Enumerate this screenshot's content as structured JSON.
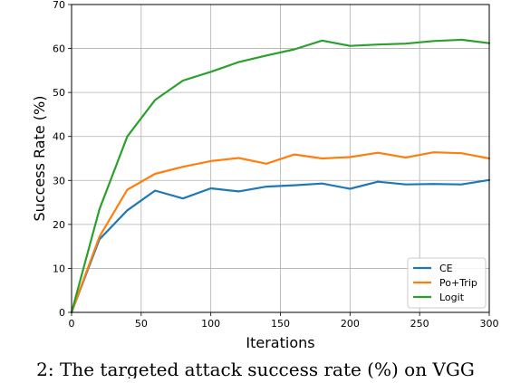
{
  "caption": "2: The targeted attack success rate (%) on VGG",
  "chart_data": {
    "type": "line",
    "title": "",
    "xlabel": "Iterations",
    "ylabel": "Success Rate (%)",
    "xlim": [
      0,
      300
    ],
    "ylim": [
      0,
      70
    ],
    "xticks": [
      "0",
      "50",
      "100",
      "150",
      "200",
      "250",
      "300"
    ],
    "yticks": [
      "0",
      "10",
      "20",
      "30",
      "40",
      "50",
      "60",
      "70"
    ],
    "grid": true,
    "legend_position": "lower-right",
    "x": [
      0,
      20,
      40,
      60,
      80,
      100,
      120,
      140,
      160,
      180,
      200,
      220,
      240,
      260,
      280,
      300
    ],
    "series": [
      {
        "name": "CE",
        "color": "#1f77b4",
        "values": [
          0,
          16.6,
          23.2,
          27.7,
          25.9,
          28.2,
          27.5,
          28.6,
          28.9,
          29.3,
          28.1,
          29.7,
          29.1,
          29.2,
          29.1,
          30.1
        ]
      },
      {
        "name": "Po+Trip",
        "color": "#ff7f0e",
        "values": [
          0,
          17.2,
          27.9,
          31.5,
          33.1,
          34.4,
          35.1,
          33.8,
          35.9,
          35.0,
          35.3,
          36.3,
          35.2,
          36.4,
          36.2,
          35.0
        ]
      },
      {
        "name": "Logit",
        "color": "#2ca02c",
        "values": [
          0,
          23.4,
          40.0,
          48.3,
          52.7,
          54.7,
          56.9,
          58.4,
          59.8,
          61.8,
          60.6,
          60.9,
          61.1,
          61.7,
          62.0,
          61.2
        ]
      }
    ]
  }
}
